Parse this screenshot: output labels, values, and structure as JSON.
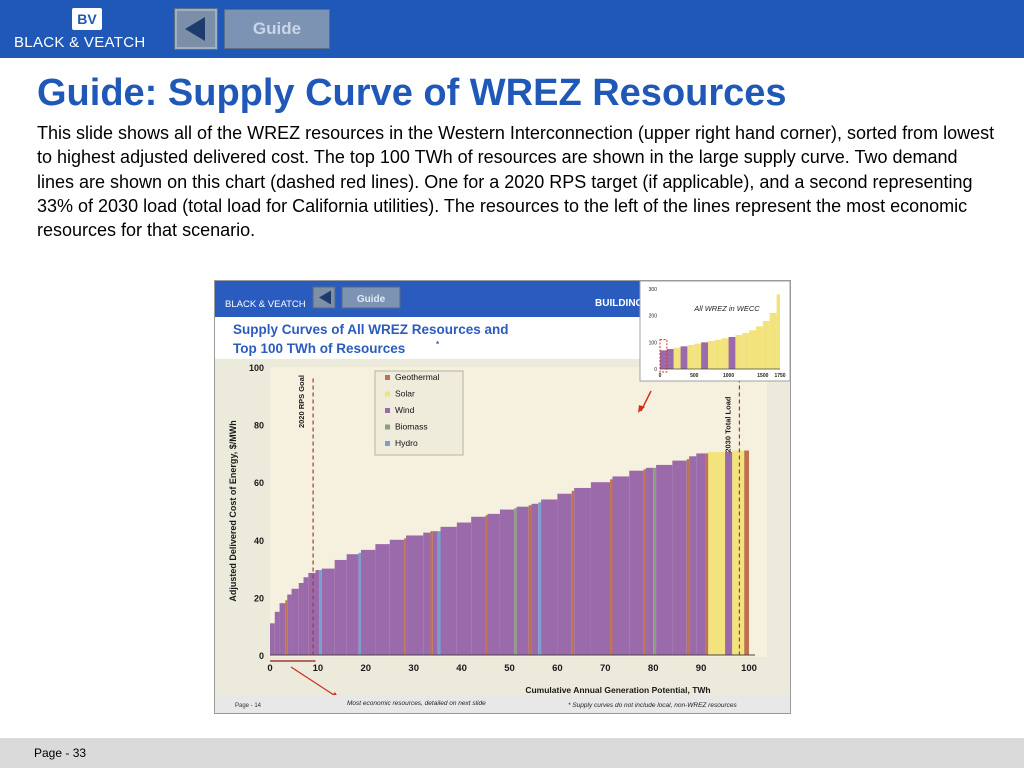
{
  "header": {
    "logo_text": "BLACK & VEATCH",
    "logo_mark": "BV",
    "back_icon": "back-triangle-icon",
    "guide_label": "Guide"
  },
  "slide": {
    "title": "Guide: Supply Curve of WREZ Resources",
    "body": "This slide shows all of the WREZ resources in the Western Interconnection (upper right hand corner), sorted from lowest to highest adjusted delivered cost.  The top 100 TWh of resources are shown in the large supply curve.  Two demand lines are shown on this chart (dashed red lines).  One for a 2020 RPS target (if applicable), and a second representing 33% of 2030 load (total load for California utilities).  The resources to the left of the lines represent the most economic resources for that scenario."
  },
  "embedded_slide": {
    "logo_text": "BLACK & VEATCH",
    "guide_label": "Guide",
    "building_label": "BUILDING",
    "title_line1": "Supply Curves of All WREZ Resources and",
    "title_line2": "Top 100 TWh of Resources",
    "title_mark": "*",
    "footer_page": "Page - 14",
    "footer_note": "Most economic resources, detailed on next slide",
    "footer_footnote": "* Supply curves do not include local, non-WREZ resources",
    "inset_title": "All WREZ in WECC"
  },
  "colors": {
    "brand_blue": "#2058b8",
    "Geothermal": "#c0724e",
    "Solar": "#f3e37d",
    "Wind": "#9b6aab",
    "Biomass": "#8aa07a",
    "Hydro": "#7a9fcf",
    "demand_line": "#a33a32"
  },
  "chart_data": [
    {
      "type": "bar",
      "title": "Supply Curves of All WREZ Resources and Top 100 TWh of Resources*",
      "xlabel": "Cumulative Annual Generation Potential, TWh",
      "ylabel": "Adjusted Delivered Cost of Energy, $/MWh",
      "xlim": [
        0,
        100
      ],
      "ylim": [
        0,
        100
      ],
      "x_ticks": [
        0,
        10,
        20,
        30,
        40,
        50,
        60,
        70,
        80,
        90,
        100
      ],
      "y_ticks": [
        0,
        20,
        40,
        60,
        80,
        100
      ],
      "legend": [
        "Geothermal",
        "Solar",
        "Wind",
        "Biomass",
        "Hydro"
      ],
      "legend_position": "top-center",
      "annotations": [
        {
          "label": "2020 RPS Goal",
          "x": 9
        },
        {
          "label": "2030 Total Load",
          "x": 98
        }
      ],
      "segments": [
        {
          "x0": 0,
          "x1": 1,
          "cost": 11,
          "type": "Wind"
        },
        {
          "x0": 1,
          "x1": 2,
          "cost": 15,
          "type": "Wind"
        },
        {
          "x0": 2,
          "x1": 3.2,
          "cost": 18,
          "type": "Wind"
        },
        {
          "x0": 3.2,
          "x1": 3.6,
          "cost": 19,
          "type": "Geothermal"
        },
        {
          "x0": 3.6,
          "x1": 4.5,
          "cost": 21,
          "type": "Wind"
        },
        {
          "x0": 4.5,
          "x1": 6,
          "cost": 23,
          "type": "Wind"
        },
        {
          "x0": 6,
          "x1": 7,
          "cost": 25,
          "type": "Wind"
        },
        {
          "x0": 7,
          "x1": 8,
          "cost": 27,
          "type": "Wind"
        },
        {
          "x0": 8,
          "x1": 9.5,
          "cost": 28.5,
          "type": "Wind"
        },
        {
          "x0": 9.5,
          "x1": 10.3,
          "cost": 29.5,
          "type": "Wind"
        },
        {
          "x0": 10.3,
          "x1": 10.8,
          "cost": 29.5,
          "type": "Hydro"
        },
        {
          "x0": 10.8,
          "x1": 13.5,
          "cost": 30,
          "type": "Wind"
        },
        {
          "x0": 13.5,
          "x1": 16,
          "cost": 33,
          "type": "Wind"
        },
        {
          "x0": 16,
          "x1": 18.5,
          "cost": 35,
          "type": "Wind"
        },
        {
          "x0": 18.5,
          "x1": 19,
          "cost": 35.5,
          "type": "Hydro"
        },
        {
          "x0": 19,
          "x1": 22,
          "cost": 36.5,
          "type": "Wind"
        },
        {
          "x0": 22,
          "x1": 25,
          "cost": 38.5,
          "type": "Wind"
        },
        {
          "x0": 25,
          "x1": 28,
          "cost": 40,
          "type": "Wind"
        },
        {
          "x0": 28,
          "x1": 28.4,
          "cost": 40.5,
          "type": "Geothermal"
        },
        {
          "x0": 28.4,
          "x1": 32,
          "cost": 41.5,
          "type": "Wind"
        },
        {
          "x0": 32,
          "x1": 33.5,
          "cost": 42.5,
          "type": "Wind"
        },
        {
          "x0": 33.5,
          "x1": 34,
          "cost": 43,
          "type": "Geothermal"
        },
        {
          "x0": 34,
          "x1": 35,
          "cost": 43,
          "type": "Wind"
        },
        {
          "x0": 35,
          "x1": 35.6,
          "cost": 43,
          "type": "Hydro"
        },
        {
          "x0": 35.6,
          "x1": 39,
          "cost": 44.5,
          "type": "Wind"
        },
        {
          "x0": 39,
          "x1": 42,
          "cost": 46,
          "type": "Wind"
        },
        {
          "x0": 42,
          "x1": 45,
          "cost": 48,
          "type": "Wind"
        },
        {
          "x0": 45,
          "x1": 45.4,
          "cost": 48.5,
          "type": "Geothermal"
        },
        {
          "x0": 45.4,
          "x1": 48,
          "cost": 49,
          "type": "Wind"
        },
        {
          "x0": 48,
          "x1": 51,
          "cost": 50.5,
          "type": "Wind"
        },
        {
          "x0": 51,
          "x1": 51.5,
          "cost": 51,
          "type": "Biomass"
        },
        {
          "x0": 51.5,
          "x1": 54,
          "cost": 51.5,
          "type": "Wind"
        },
        {
          "x0": 54,
          "x1": 54.6,
          "cost": 52,
          "type": "Geothermal"
        },
        {
          "x0": 54.6,
          "x1": 56,
          "cost": 52.5,
          "type": "Wind"
        },
        {
          "x0": 56,
          "x1": 56.6,
          "cost": 53,
          "type": "Hydro"
        },
        {
          "x0": 56.6,
          "x1": 60,
          "cost": 54,
          "type": "Wind"
        },
        {
          "x0": 60,
          "x1": 63,
          "cost": 56,
          "type": "Wind"
        },
        {
          "x0": 63,
          "x1": 63.5,
          "cost": 57,
          "type": "Geothermal"
        },
        {
          "x0": 63.5,
          "x1": 67,
          "cost": 58,
          "type": "Wind"
        },
        {
          "x0": 67,
          "x1": 71,
          "cost": 60,
          "type": "Wind"
        },
        {
          "x0": 71,
          "x1": 71.5,
          "cost": 61,
          "type": "Geothermal"
        },
        {
          "x0": 71.5,
          "x1": 75,
          "cost": 62,
          "type": "Wind"
        },
        {
          "x0": 75,
          "x1": 78,
          "cost": 64,
          "type": "Wind"
        },
        {
          "x0": 78,
          "x1": 78.5,
          "cost": 64.5,
          "type": "Geothermal"
        },
        {
          "x0": 78.5,
          "x1": 80,
          "cost": 65,
          "type": "Wind"
        },
        {
          "x0": 80,
          "x1": 80.6,
          "cost": 65,
          "type": "Biomass"
        },
        {
          "x0": 80.6,
          "x1": 84,
          "cost": 66,
          "type": "Wind"
        },
        {
          "x0": 84,
          "x1": 87,
          "cost": 67.5,
          "type": "Wind"
        },
        {
          "x0": 87,
          "x1": 87.5,
          "cost": 68,
          "type": "Geothermal"
        },
        {
          "x0": 87.5,
          "x1": 89,
          "cost": 69,
          "type": "Wind"
        },
        {
          "x0": 89,
          "x1": 91,
          "cost": 70,
          "type": "Wind"
        },
        {
          "x0": 91,
          "x1": 91.5,
          "cost": 70,
          "type": "Geothermal"
        },
        {
          "x0": 91.5,
          "x1": 95,
          "cost": 70.5,
          "type": "Solar"
        },
        {
          "x0": 95,
          "x1": 96.5,
          "cost": 70.5,
          "type": "Wind"
        },
        {
          "x0": 96.5,
          "x1": 99,
          "cost": 71,
          "type": "Solar"
        },
        {
          "x0": 99,
          "x1": 100,
          "cost": 71,
          "type": "Geothermal"
        }
      ]
    },
    {
      "type": "bar",
      "title": "All WREZ in WECC",
      "xlim": [
        0,
        1750
      ],
      "ylim": [
        0,
        300
      ],
      "x_ticks": [
        0,
        500,
        1000,
        1500,
        1750
      ],
      "y_ticks": [
        0,
        100,
        200,
        300
      ],
      "segments": [
        {
          "x0": 0,
          "x1": 100,
          "cost": 70,
          "type": "Wind"
        },
        {
          "x0": 100,
          "x1": 200,
          "cost": 75,
          "type": "Wind"
        },
        {
          "x0": 200,
          "x1": 300,
          "cost": 80,
          "type": "Solar"
        },
        {
          "x0": 300,
          "x1": 400,
          "cost": 85,
          "type": "Wind"
        },
        {
          "x0": 400,
          "x1": 500,
          "cost": 90,
          "type": "Solar"
        },
        {
          "x0": 500,
          "x1": 600,
          "cost": 95,
          "type": "Solar"
        },
        {
          "x0": 600,
          "x1": 700,
          "cost": 100,
          "type": "Wind"
        },
        {
          "x0": 700,
          "x1": 800,
          "cost": 105,
          "type": "Solar"
        },
        {
          "x0": 800,
          "x1": 900,
          "cost": 110,
          "type": "Solar"
        },
        {
          "x0": 900,
          "x1": 1000,
          "cost": 115,
          "type": "Solar"
        },
        {
          "x0": 1000,
          "x1": 1100,
          "cost": 120,
          "type": "Wind"
        },
        {
          "x0": 1100,
          "x1": 1200,
          "cost": 128,
          "type": "Solar"
        },
        {
          "x0": 1200,
          "x1": 1300,
          "cost": 135,
          "type": "Solar"
        },
        {
          "x0": 1300,
          "x1": 1400,
          "cost": 145,
          "type": "Solar"
        },
        {
          "x0": 1400,
          "x1": 1500,
          "cost": 160,
          "type": "Solar"
        },
        {
          "x0": 1500,
          "x1": 1600,
          "cost": 180,
          "type": "Solar"
        },
        {
          "x0": 1600,
          "x1": 1700,
          "cost": 210,
          "type": "Solar"
        },
        {
          "x0": 1700,
          "x1": 1750,
          "cost": 280,
          "type": "Solar"
        }
      ]
    }
  ],
  "footer": {
    "page_label": "Page - 33"
  }
}
